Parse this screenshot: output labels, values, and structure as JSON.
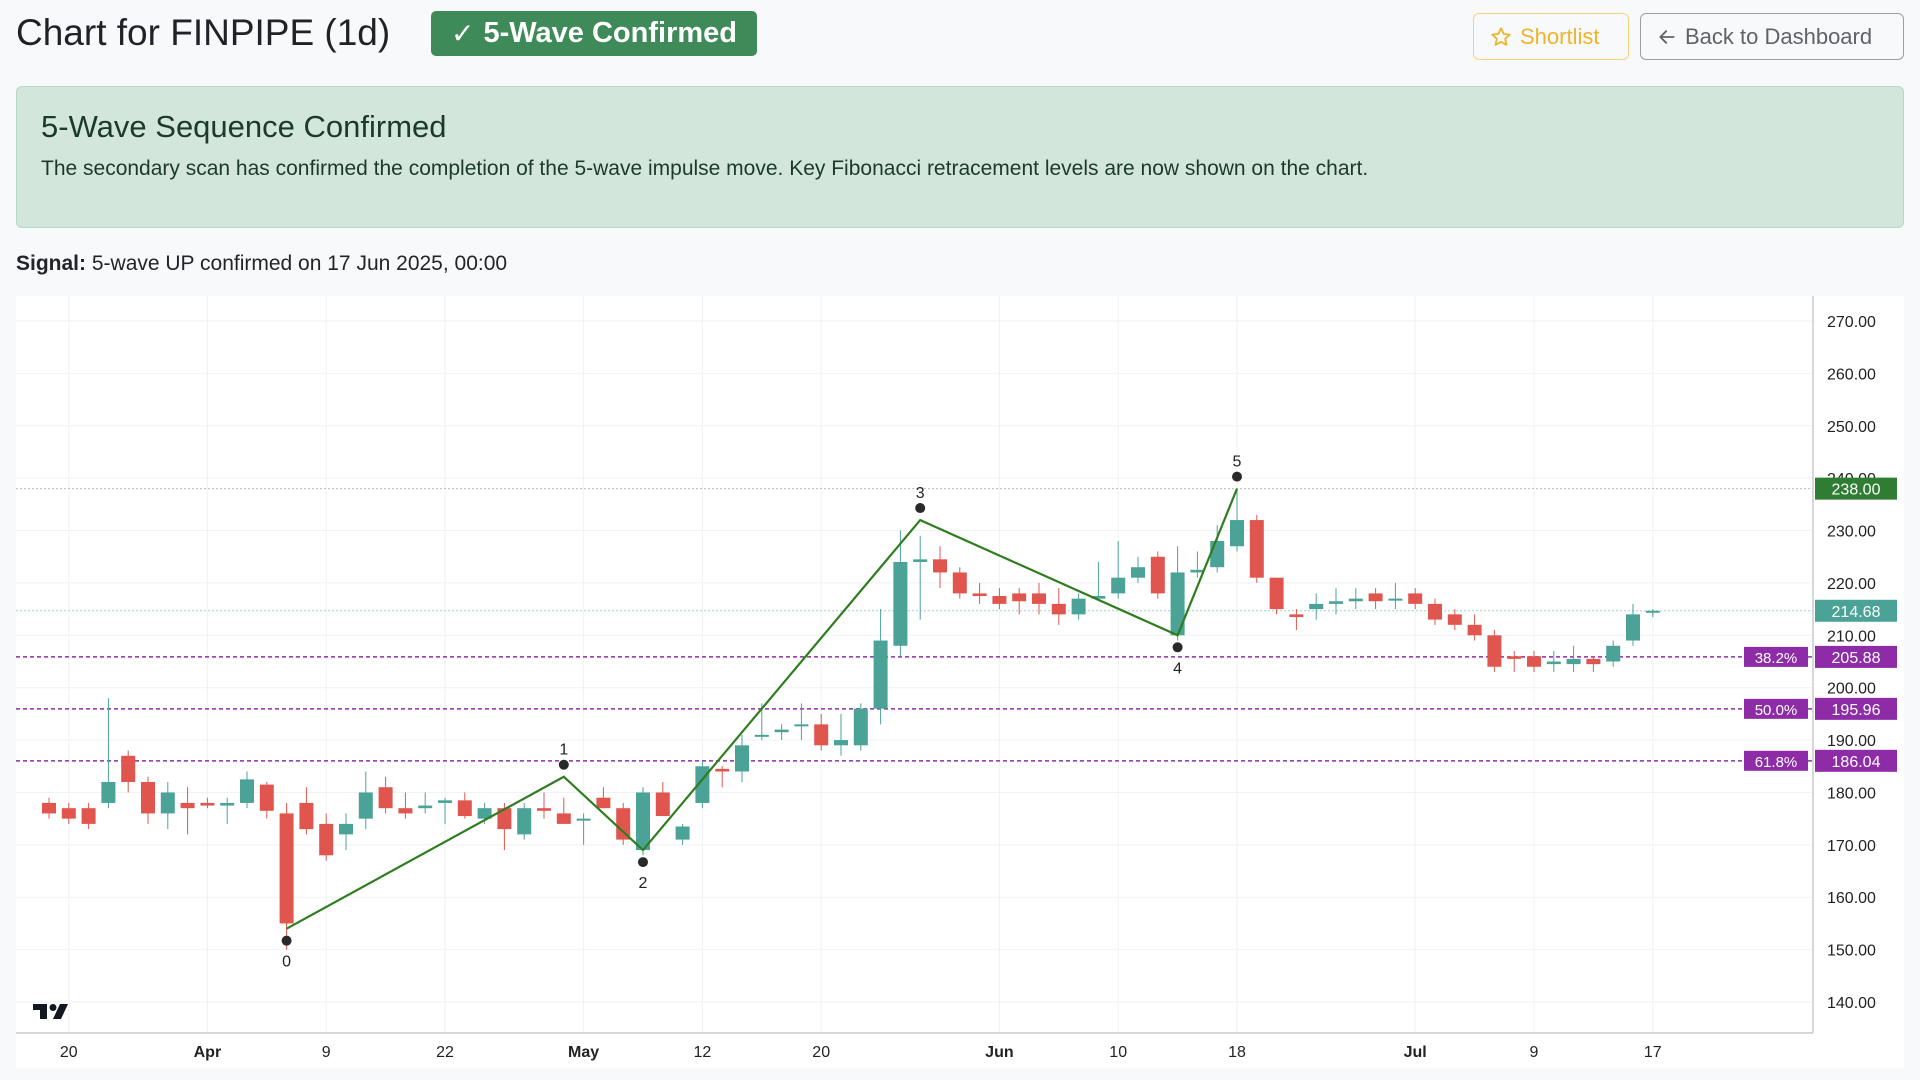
{
  "header": {
    "title": "Chart for FINPIPE (1d)",
    "badge_check": "✓",
    "badge_label": "5-Wave Confirmed",
    "shortlist_label": "Shortlist",
    "back_label": "Back to Dashboard"
  },
  "alert": {
    "heading": "5-Wave Sequence Confirmed",
    "text": "The secondary scan has confirmed the completion of the 5-wave impulse move. Key Fibonacci retracement levels are now shown on the chart."
  },
  "signal": {
    "label": "Signal:",
    "text": "5-wave UP confirmed on 17 Jun 2025, 00:00"
  },
  "colors": {
    "up": "#4aa396",
    "down": "#e0564f",
    "wave_line": "#2f7d1f",
    "fib": "#8e2ca8",
    "top_price": "#2e7d32",
    "last_price": "#4aa396"
  },
  "chart_data": {
    "type": "candlestick",
    "ylim": [
      135,
      272
    ],
    "y_ticks": [
      "270.00",
      "260.00",
      "250.00",
      "240.00",
      "230.00",
      "220.00",
      "210.00",
      "200.00",
      "190.00",
      "180.00",
      "170.00",
      "160.00",
      "150.00",
      "140.00"
    ],
    "x_ticks": [
      {
        "label": "20",
        "i": 1
      },
      {
        "label": "Apr",
        "i": 8,
        "bold": true
      },
      {
        "label": "9",
        "i": 14
      },
      {
        "label": "22",
        "i": 20
      },
      {
        "label": "May",
        "i": 27,
        "bold": true
      },
      {
        "label": "12",
        "i": 33
      },
      {
        "label": "20",
        "i": 39
      },
      {
        "label": "Jun",
        "i": 48,
        "bold": true
      },
      {
        "label": "10",
        "i": 54
      },
      {
        "label": "18",
        "i": 60
      },
      {
        "label": "Jul",
        "i": 69,
        "bold": true
      },
      {
        "label": "9",
        "i": 75
      },
      {
        "label": "17",
        "i": 81
      }
    ],
    "candles": [
      [
        178,
        179,
        175,
        176
      ],
      [
        177,
        178,
        174,
        175
      ],
      [
        177,
        178,
        173,
        174
      ],
      [
        178,
        198,
        177,
        182
      ],
      [
        187,
        188,
        180,
        182
      ],
      [
        182,
        183,
        174,
        176
      ],
      [
        176,
        182,
        173,
        180
      ],
      [
        178,
        181,
        172,
        177
      ],
      [
        178,
        179,
        177,
        177.5
      ],
      [
        177.5,
        179,
        174,
        178
      ],
      [
        178,
        184,
        177,
        182.5
      ],
      [
        181.5,
        182,
        175,
        176.5
      ],
      [
        176,
        178,
        150,
        155
      ],
      [
        178,
        181,
        172,
        173
      ],
      [
        174,
        176,
        167,
        168
      ],
      [
        172,
        176,
        169,
        174
      ],
      [
        175,
        184,
        173,
        180
      ],
      [
        181,
        183,
        176,
        177
      ],
      [
        177,
        180,
        175,
        176
      ],
      [
        177,
        180,
        176,
        177.5
      ],
      [
        178,
        179,
        174,
        178.5
      ],
      [
        178.5,
        180,
        175,
        175.5
      ],
      [
        175,
        178,
        174,
        177
      ],
      [
        177,
        178,
        169,
        173
      ],
      [
        172,
        178,
        171,
        177
      ],
      [
        177,
        180,
        175,
        176.5
      ],
      [
        176,
        179,
        174,
        174
      ],
      [
        175,
        176,
        170,
        175
      ],
      [
        179,
        181,
        177,
        177
      ],
      [
        177,
        178,
        170,
        171
      ],
      [
        169,
        181,
        168,
        180
      ],
      [
        180,
        182,
        176,
        175.5
      ],
      [
        171,
        174,
        170,
        173.5
      ],
      [
        178,
        186,
        177,
        185
      ],
      [
        184.5,
        185,
        181,
        184
      ],
      [
        184,
        191,
        182,
        189
      ],
      [
        191,
        197,
        190,
        191
      ],
      [
        191.5,
        193,
        190,
        192
      ],
      [
        193,
        197,
        190,
        193
      ],
      [
        193,
        195,
        188,
        189
      ],
      [
        189,
        195,
        187,
        190
      ],
      [
        189,
        197,
        188,
        196
      ],
      [
        196,
        215,
        193,
        209
      ],
      [
        208,
        230,
        206,
        224
      ],
      [
        224,
        229,
        213,
        224.5
      ],
      [
        224.5,
        227,
        219,
        222
      ],
      [
        222,
        223,
        217,
        218
      ],
      [
        218,
        220,
        216,
        217.5
      ],
      [
        217.5,
        219,
        215,
        216
      ],
      [
        218,
        219,
        214,
        216.5
      ],
      [
        218,
        220,
        214,
        216
      ],
      [
        216,
        219,
        212,
        214
      ],
      [
        214,
        218,
        213,
        217
      ],
      [
        217,
        224,
        217,
        217.5
      ],
      [
        218,
        228,
        217,
        221
      ],
      [
        221,
        225,
        220,
        223
      ],
      [
        225,
        226,
        217,
        218
      ],
      [
        210,
        227,
        209,
        222
      ],
      [
        222,
        226,
        221,
        222.5
      ],
      [
        223,
        231,
        222,
        228
      ],
      [
        227,
        238,
        226,
        232
      ],
      [
        232,
        233,
        220,
        221
      ],
      [
        221,
        221,
        214,
        215
      ],
      [
        214,
        215,
        211,
        213.5
      ],
      [
        215,
        218,
        213,
        216
      ],
      [
        216,
        219,
        214,
        216.5
      ],
      [
        216.5,
        219,
        215,
        217
      ],
      [
        218,
        219,
        215,
        216.5
      ],
      [
        217,
        220,
        215,
        217
      ],
      [
        218,
        219,
        215,
        216
      ],
      [
        216,
        217,
        212,
        213
      ],
      [
        214,
        215,
        211,
        212
      ],
      [
        212,
        214,
        209,
        210
      ],
      [
        210,
        211,
        203,
        204
      ],
      [
        206,
        207,
        203,
        205.5
      ],
      [
        206,
        207,
        203,
        204
      ],
      [
        204.5,
        207,
        203,
        205
      ],
      [
        204.5,
        208,
        203,
        205.5
      ],
      [
        205.5,
        206,
        203,
        204.5
      ],
      [
        205,
        209,
        204,
        208
      ],
      [
        209,
        216,
        208,
        214
      ],
      [
        214.5,
        215,
        213.5,
        214.68
      ]
    ],
    "waves": [
      {
        "label": "0",
        "i": 12,
        "price": 154,
        "pos": "below"
      },
      {
        "label": "1",
        "i": 26,
        "price": 183,
        "pos": "above"
      },
      {
        "label": "2",
        "i": 30,
        "price": 169,
        "pos": "below"
      },
      {
        "label": "3",
        "i": 44,
        "price": 232,
        "pos": "above"
      },
      {
        "label": "4",
        "i": 57,
        "price": 210,
        "pos": "below"
      },
      {
        "label": "5",
        "i": 60,
        "price": 238,
        "pos": "above"
      }
    ],
    "fib_levels": [
      {
        "pct": "38.2%",
        "price": 205.88,
        "label": "205.88"
      },
      {
        "pct": "50.0%",
        "price": 195.96,
        "label": "195.96"
      },
      {
        "pct": "61.8%",
        "price": 186.04,
        "label": "186.04"
      }
    ],
    "top_line": {
      "price": 238.0,
      "label": "238.00"
    },
    "last_price": {
      "price": 214.68,
      "label": "214.68"
    }
  }
}
